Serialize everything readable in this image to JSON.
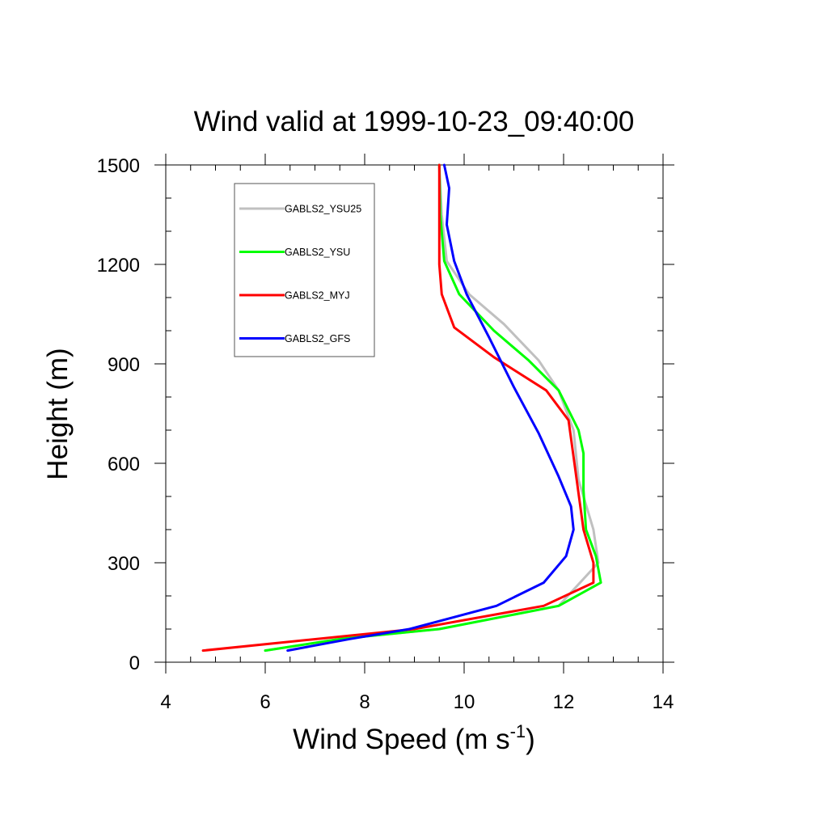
{
  "chart_data": {
    "type": "line",
    "title": "Wind valid at 1999-10-23_09:40:00",
    "xlabel": "Wind Speed (m s",
    "xlabel_sup": "-1",
    "xlabel_close": ")",
    "ylabel": "Height (m)",
    "xlim": [
      4,
      14
    ],
    "ylim": [
      0,
      1500
    ],
    "x_ticks": [
      4,
      6,
      8,
      10,
      12,
      14
    ],
    "x_tick_labels": [
      "4",
      "6",
      "8",
      "10",
      "12",
      "14"
    ],
    "y_ticks": [
      0,
      300,
      600,
      900,
      1200,
      1500
    ],
    "y_tick_labels": [
      "0",
      "300",
      "600",
      "900",
      "1200",
      "1500"
    ],
    "legend_position": "top-left",
    "grid": false,
    "series": [
      {
        "name": "GABLS2_YSU25",
        "color": "#c0c0c0",
        "points": [
          [
            6.0,
            35
          ],
          [
            7.5,
            70
          ],
          [
            9.5,
            100
          ],
          [
            11.9,
            170
          ],
          [
            12.7,
            300
          ],
          [
            12.6,
            400
          ],
          [
            12.3,
            550
          ],
          [
            12.2,
            700
          ],
          [
            11.9,
            820
          ],
          [
            11.5,
            910
          ],
          [
            10.8,
            1020
          ],
          [
            10.1,
            1110
          ],
          [
            9.65,
            1210
          ],
          [
            9.55,
            1350
          ],
          [
            9.5,
            1500
          ]
        ]
      },
      {
        "name": "GABLS2_YSU",
        "color": "#00ff00",
        "points": [
          [
            6.0,
            35
          ],
          [
            7.5,
            70
          ],
          [
            9.5,
            100
          ],
          [
            11.9,
            170
          ],
          [
            12.75,
            240
          ],
          [
            12.65,
            320
          ],
          [
            12.45,
            400
          ],
          [
            12.4,
            520
          ],
          [
            12.4,
            630
          ],
          [
            12.3,
            700
          ],
          [
            11.9,
            820
          ],
          [
            11.3,
            910
          ],
          [
            10.6,
            1000
          ],
          [
            9.9,
            1110
          ],
          [
            9.6,
            1210
          ],
          [
            9.52,
            1350
          ],
          [
            9.5,
            1500
          ]
        ]
      },
      {
        "name": "GABLS2_MYJ",
        "color": "#ff0000",
        "points": [
          [
            4.75,
            35
          ],
          [
            9.0,
            100
          ],
          [
            11.6,
            170
          ],
          [
            12.6,
            240
          ],
          [
            12.6,
            300
          ],
          [
            12.4,
            400
          ],
          [
            12.2,
            620
          ],
          [
            12.1,
            730
          ],
          [
            11.65,
            820
          ],
          [
            10.6,
            920
          ],
          [
            9.8,
            1010
          ],
          [
            9.55,
            1110
          ],
          [
            9.5,
            1200
          ],
          [
            9.5,
            1500
          ]
        ]
      },
      {
        "name": "GABLS2_GFS",
        "color": "#0000ff",
        "points": [
          [
            6.45,
            35
          ],
          [
            7.7,
            70
          ],
          [
            8.9,
            100
          ],
          [
            10.65,
            170
          ],
          [
            11.6,
            240
          ],
          [
            12.05,
            320
          ],
          [
            12.2,
            400
          ],
          [
            12.15,
            470
          ],
          [
            11.9,
            560
          ],
          [
            11.5,
            690
          ],
          [
            11.0,
            830
          ],
          [
            10.5,
            980
          ],
          [
            10.05,
            1110
          ],
          [
            9.8,
            1210
          ],
          [
            9.65,
            1320
          ],
          [
            9.7,
            1430
          ],
          [
            9.6,
            1500
          ]
        ]
      }
    ]
  }
}
